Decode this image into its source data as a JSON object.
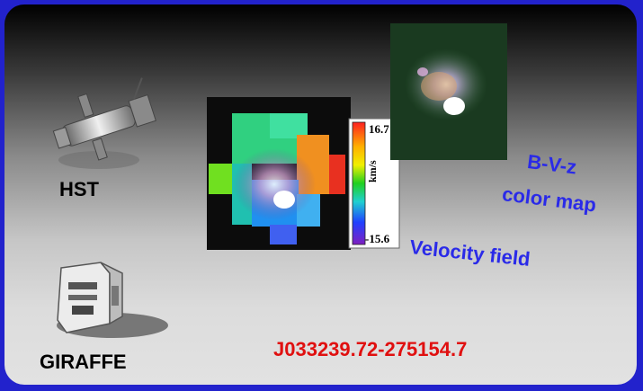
{
  "instruments": {
    "hst_label": "HST",
    "giraffe_label": "GIRAFFE"
  },
  "panels": {
    "velocity_label": "Velocity field",
    "colormap_label_line1": "B-V-z",
    "colormap_label_line2": "color map"
  },
  "colorbar": {
    "max": "16.7",
    "min": "-15.6",
    "unit": "km/s"
  },
  "target": {
    "name": "J033239.72-275154.7"
  },
  "colors": {
    "frame": "#2222cc",
    "blue_label": "#2a2ae8",
    "target_red": "#e01010"
  },
  "icons": [
    "telescope-icon",
    "spectrograph-icon"
  ]
}
